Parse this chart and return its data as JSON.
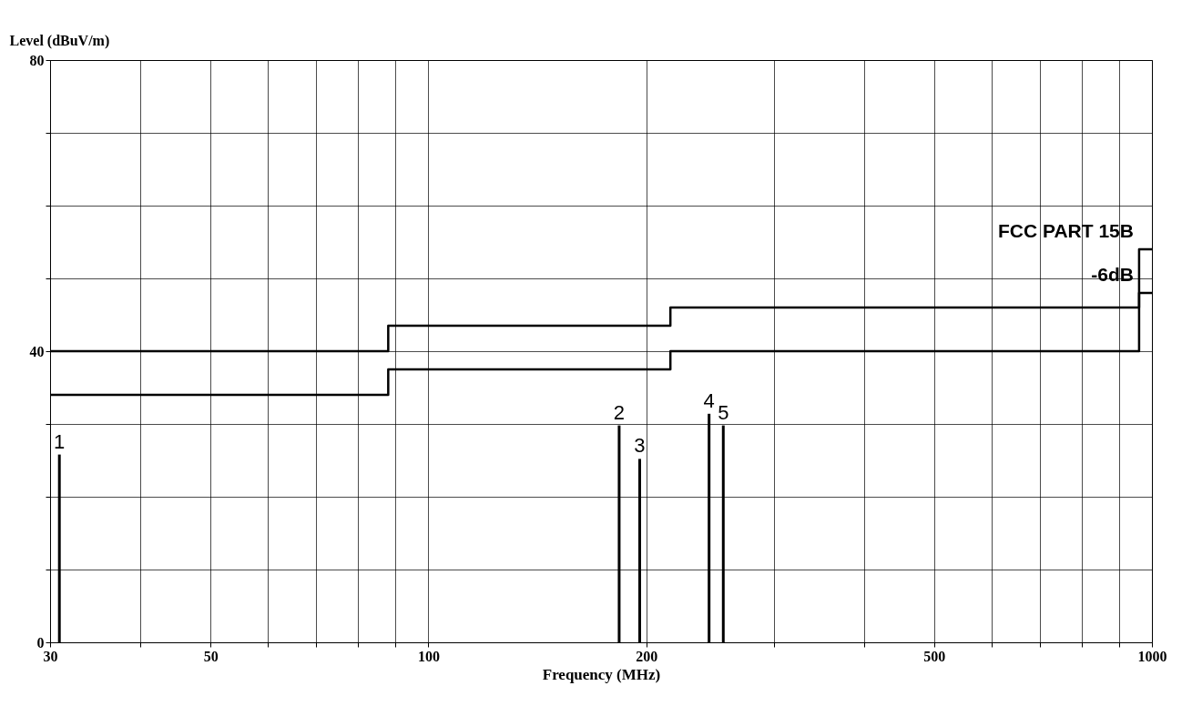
{
  "chart_data": {
    "type": "bar",
    "xlabel": "Frequency (MHz)",
    "ylabel": "Level (dBuV/m)",
    "log": "x",
    "xlim": [
      30,
      1000
    ],
    "ylim": [
      0,
      80
    ],
    "xticks": [
      30,
      {
        "value": 40,
        "label": null
      },
      50,
      {
        "value": 60,
        "label": null
      },
      {
        "value": 70,
        "label": null
      },
      {
        "value": 80,
        "label": null
      },
      {
        "value": 90,
        "label": null
      },
      100,
      200,
      {
        "value": 300,
        "label": null
      },
      {
        "value": 400,
        "label": null
      },
      500,
      {
        "value": 600,
        "label": null
      },
      {
        "value": 700,
        "label": null
      },
      {
        "value": 800,
        "label": null
      },
      {
        "value": 900,
        "label": null
      },
      1000
    ],
    "yticks": [
      0,
      {
        "value": 10,
        "label": null
      },
      {
        "value": 20,
        "label": null
      },
      {
        "value": 30,
        "label": null
      },
      40,
      {
        "value": 50,
        "label": null
      },
      {
        "value": 60,
        "label": null
      },
      {
        "value": 70,
        "label": null
      },
      80
    ],
    "grid": true,
    "series": [
      {
        "color": "#000000",
        "x": [
          30.9,
          183.5,
          195.9,
          244.3,
          255.6
        ],
        "values": [
          25.8,
          29.8,
          25.2,
          31.4,
          29.8
        ]
      },
      {
        "type": "step",
        "name": "FCC PART 15B",
        "color": "#000000",
        "x": [
          30,
          88,
          216,
          960,
          1000
        ],
        "values": [
          40,
          43.5,
          46,
          54,
          54
        ]
      },
      {
        "type": "step",
        "name": "-6dB",
        "color": "#000000",
        "x": [
          30,
          88,
          216,
          960,
          1000
        ],
        "values": [
          34,
          37.5,
          40,
          48,
          48
        ]
      }
    ],
    "annotations": [
      {
        "text": "1",
        "x": 30.9,
        "y": 25.8
      },
      {
        "text": "2",
        "x": 183.5,
        "y": 29.8
      },
      {
        "text": "3",
        "x": 195.9,
        "y": 25.2
      },
      {
        "text": "4",
        "x": 244.3,
        "y": 31.4
      },
      {
        "text": "5",
        "x": 255.6,
        "y": 29.8
      }
    ]
  }
}
